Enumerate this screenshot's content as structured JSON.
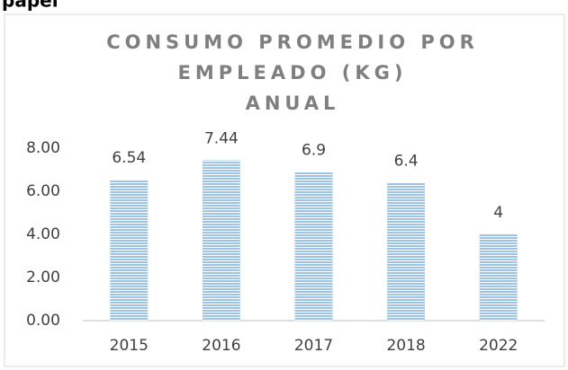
{
  "caption": "papel",
  "chart_data": {
    "type": "bar",
    "title": [
      "CONSUMO PROMEDIO POR",
      "EMPLEADO (KG)",
      "ANUAL"
    ],
    "categories": [
      "2015",
      "2016",
      "2017",
      "2018",
      "2022"
    ],
    "values": [
      6.54,
      7.44,
      6.9,
      6.4,
      4
    ],
    "color": "#9dc3e6",
    "ylim": [
      0,
      8
    ],
    "yticks": [
      {
        "value": 0,
        "label": "0.00"
      },
      {
        "value": 2,
        "label": "2.00"
      },
      {
        "value": 4,
        "label": "4.00"
      },
      {
        "value": 6,
        "label": "6.00"
      },
      {
        "value": 8,
        "label": "8.00"
      }
    ],
    "grid": false
  }
}
